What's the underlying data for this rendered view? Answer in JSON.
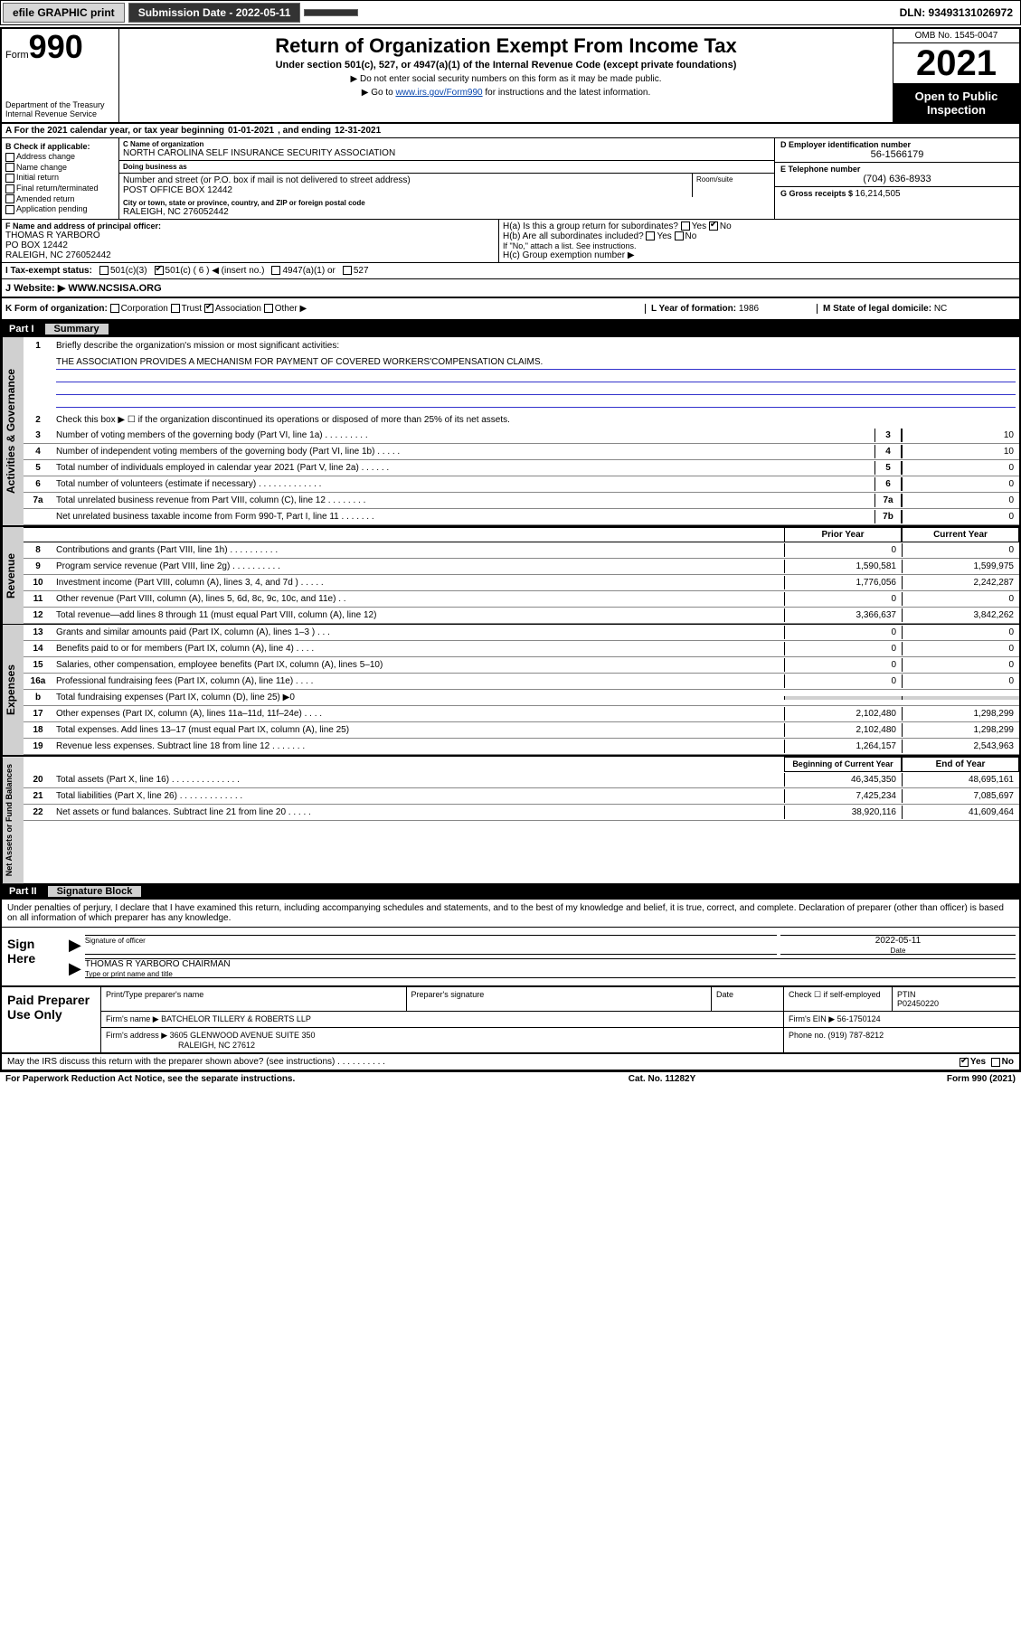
{
  "topbar": {
    "efile": "efile GRAPHIC print",
    "submission_label": "Submission Date - 2022-05-11",
    "dln": "DLN: 93493131026972"
  },
  "header": {
    "form_prefix": "Form",
    "form_num": "990",
    "dept": "Department of the Treasury",
    "irs": "Internal Revenue Service",
    "title": "Return of Organization Exempt From Income Tax",
    "sub": "Under section 501(c), 527, or 4947(a)(1) of the Internal Revenue Code (except private foundations)",
    "note1": "▶ Do not enter social security numbers on this form as it may be made public.",
    "note2_pre": "▶ Go to ",
    "note2_link": "www.irs.gov/Form990",
    "note2_post": " for instructions and the latest information.",
    "omb": "OMB No. 1545-0047",
    "year": "2021",
    "open": "Open to Public Inspection"
  },
  "row_a": {
    "label": "A For the 2021 calendar year, or tax year beginning ",
    "begin": "01-01-2021",
    "mid": " , and ending ",
    "end": "12-31-2021"
  },
  "col_b": {
    "hdr": "B Check if applicable:",
    "opts": [
      "Address change",
      "Name change",
      "Initial return",
      "Final return/terminated",
      "Amended return",
      "Application pending"
    ]
  },
  "col_c": {
    "name_lab": "C Name of organization",
    "name": "NORTH CAROLINA SELF INSURANCE SECURITY ASSOCIATION",
    "dba_lab": "Doing business as",
    "dba": "",
    "addr_lab": "Number and street (or P.O. box if mail is not delivered to street address)",
    "addr": "POST OFFICE BOX 12442",
    "room_lab": "Room/suite",
    "city_lab": "City or town, state or province, country, and ZIP or foreign postal code",
    "city": "RALEIGH, NC  276052442"
  },
  "col_d": {
    "d_lab": "D Employer identification number",
    "d_val": "56-1566179",
    "e_lab": "E Telephone number",
    "e_val": "(704) 636-8933",
    "g_lab": "G Gross receipts $ ",
    "g_val": "16,214,505"
  },
  "officer": {
    "f_lab": "F Name and address of principal officer:",
    "name": "THOMAS R YARBORO",
    "addr1": "PO BOX 12442",
    "addr2": "RALEIGH, NC  276052442",
    "ha": "H(a)  Is this a group return for subordinates?",
    "ha_yes": "Yes",
    "ha_no": "No",
    "hb": "H(b)  Are all subordinates included?",
    "hb_note": "If \"No,\" attach a list. See instructions.",
    "hc": "H(c)  Group exemption number ▶"
  },
  "status": {
    "i_lab": "I  Tax-exempt status:",
    "s1": "501(c)(3)",
    "s2": "501(c) ( 6 ) ◀ (insert no.)",
    "s3": "4947(a)(1) or",
    "s4": "527"
  },
  "web": {
    "j_lab": "J  Website: ▶ ",
    "val": "WWW.NCSISA.ORG"
  },
  "korg": {
    "k_lab": "K Form of organization:",
    "o1": "Corporation",
    "o2": "Trust",
    "o3": "Association",
    "o4": "Other ▶",
    "l_lab": "L Year of formation: ",
    "l_val": "1986",
    "m_lab": "M State of legal domicile: ",
    "m_val": "NC"
  },
  "part1": {
    "num": "Part I",
    "title": "Summary"
  },
  "summary": {
    "l1": "Briefly describe the organization's mission or most significant activities:",
    "mission": "THE ASSOCIATION PROVIDES A MECHANISM FOR PAYMENT OF COVERED WORKERS'COMPENSATION CLAIMS.",
    "l2": "Check this box ▶ ☐  if the organization discontinued its operations or disposed of more than 25% of its net assets.",
    "lines_top": [
      {
        "n": "3",
        "d": "Number of voting members of the governing body (Part VI, line 1a)   .    .    .    .    .    .    .    .    .",
        "c": "3",
        "v": "10"
      },
      {
        "n": "4",
        "d": "Number of independent voting members of the governing body (Part VI, line 1b)  .    .    .    .    .",
        "c": "4",
        "v": "10"
      },
      {
        "n": "5",
        "d": "Total number of individuals employed in calendar year 2021 (Part V, line 2a)  .    .    .    .    .    .",
        "c": "5",
        "v": "0"
      },
      {
        "n": "6",
        "d": "Total number of volunteers (estimate if necessary)   .    .    .    .    .    .    .    .    .    .    .    .    .",
        "c": "6",
        "v": "0"
      },
      {
        "n": "7a",
        "d": "Total unrelated business revenue from Part VIII, column (C), line 12  .    .    .    .    .    .    .    .",
        "c": "7a",
        "v": "0"
      },
      {
        "n": "",
        "d": "Net unrelated business taxable income from Form 990-T, Part I, line 11  .    .    .    .    .    .    .",
        "c": "7b",
        "v": "0"
      }
    ],
    "col_hdr_prior": "Prior Year",
    "col_hdr_curr": "Current Year",
    "rev": [
      {
        "n": "8",
        "d": "Contributions and grants (Part VIII, line 1h)   .    .    .    .    .    .    .    .    .    .",
        "p": "0",
        "c": "0"
      },
      {
        "n": "9",
        "d": "Program service revenue (Part VIII, line 2g)   .    .    .    .    .    .    .    .    .    .",
        "p": "1,590,581",
        "c": "1,599,975"
      },
      {
        "n": "10",
        "d": "Investment income (Part VIII, column (A), lines 3, 4, and 7d )   .    .    .    .    .",
        "p": "1,776,056",
        "c": "2,242,287"
      },
      {
        "n": "11",
        "d": "Other revenue (Part VIII, column (A), lines 5, 6d, 8c, 9c, 10c, and 11e)   .    .",
        "p": "0",
        "c": "0"
      },
      {
        "n": "12",
        "d": "Total revenue—add lines 8 through 11 (must equal Part VIII, column (A), line 12)",
        "p": "3,366,637",
        "c": "3,842,262"
      }
    ],
    "exp": [
      {
        "n": "13",
        "d": "Grants and similar amounts paid (Part IX, column (A), lines 1–3 )  .    .    .",
        "p": "0",
        "c": "0"
      },
      {
        "n": "14",
        "d": "Benefits paid to or for members (Part IX, column (A), line 4)  .    .    .    .",
        "p": "0",
        "c": "0"
      },
      {
        "n": "15",
        "d": "Salaries, other compensation, employee benefits (Part IX, column (A), lines 5–10)",
        "p": "0",
        "c": "0"
      },
      {
        "n": "16a",
        "d": "Professional fundraising fees (Part IX, column (A), line 11e)  .    .    .    .",
        "p": "0",
        "c": "0"
      },
      {
        "n": "b",
        "d": "Total fundraising expenses (Part IX, column (D), line 25) ▶0",
        "p": "",
        "c": "",
        "grey": true
      },
      {
        "n": "17",
        "d": "Other expenses (Part IX, column (A), lines 11a–11d, 11f–24e)  .    .    .    .",
        "p": "2,102,480",
        "c": "1,298,299"
      },
      {
        "n": "18",
        "d": "Total expenses. Add lines 13–17 (must equal Part IX, column (A), line 25)",
        "p": "2,102,480",
        "c": "1,298,299"
      },
      {
        "n": "19",
        "d": "Revenue less expenses. Subtract line 18 from line 12  .    .    .    .    .    .    .",
        "p": "1,264,157",
        "c": "2,543,963"
      }
    ],
    "col_hdr_beg": "Beginning of Current Year",
    "col_hdr_end": "End of Year",
    "net": [
      {
        "n": "20",
        "d": "Total assets (Part X, line 16)  .    .    .    .    .    .    .    .    .    .    .    .    .    .",
        "p": "46,345,350",
        "c": "48,695,161"
      },
      {
        "n": "21",
        "d": "Total liabilities (Part X, line 26)  .    .    .    .    .    .    .    .    .    .    .    .    .",
        "p": "7,425,234",
        "c": "7,085,697"
      },
      {
        "n": "22",
        "d": "Net assets or fund balances. Subtract line 21 from line 20  .    .    .    .    .",
        "p": "38,920,116",
        "c": "41,609,464"
      }
    ]
  },
  "vlabels": {
    "gov": "Activities & Governance",
    "rev": "Revenue",
    "exp": "Expenses",
    "net": "Net Assets or Fund Balances"
  },
  "part2": {
    "num": "Part II",
    "title": "Signature Block"
  },
  "sig": {
    "intro": "Under penalties of perjury, I declare that I have examined this return, including accompanying schedules and statements, and to the best of my knowledge and belief, it is true, correct, and complete. Declaration of preparer (other than officer) is based on all information of which preparer has any knowledge.",
    "sign_here": "Sign Here",
    "sig_lab": "Signature of officer",
    "date_lab": "Date",
    "date_val": "2022-05-11",
    "name_title": "THOMAS R YARBORO  CHAIRMAN",
    "name_lab": "Type or print name and title"
  },
  "prep": {
    "title": "Paid Preparer Use Only",
    "h1": "Print/Type preparer's name",
    "h2": "Preparer's signature",
    "h3": "Date",
    "h4": "Check ☐ if self-employed",
    "h5_lab": "PTIN",
    "h5_val": "P02450220",
    "firm_name_lab": "Firm's name    ▶ ",
    "firm_name": "BATCHELOR TILLERY & ROBERTS LLP",
    "firm_ein_lab": "Firm's EIN ▶ ",
    "firm_ein": "56-1750124",
    "firm_addr_lab": "Firm's address ▶ ",
    "firm_addr1": "3605 GLENWOOD AVENUE SUITE 350",
    "firm_addr2": "RALEIGH, NC  27612",
    "phone_lab": "Phone no. ",
    "phone": "(919) 787-8212"
  },
  "discuss": {
    "q": "May the IRS discuss this return with the preparer shown above? (see instructions)   .    .    .    .    .    .    .    .    .    .",
    "yes": "Yes",
    "no": "No"
  },
  "footer": {
    "l": "For Paperwork Reduction Act Notice, see the separate instructions.",
    "m": "Cat. No. 11282Y",
    "r": "Form 990 (2021)"
  }
}
